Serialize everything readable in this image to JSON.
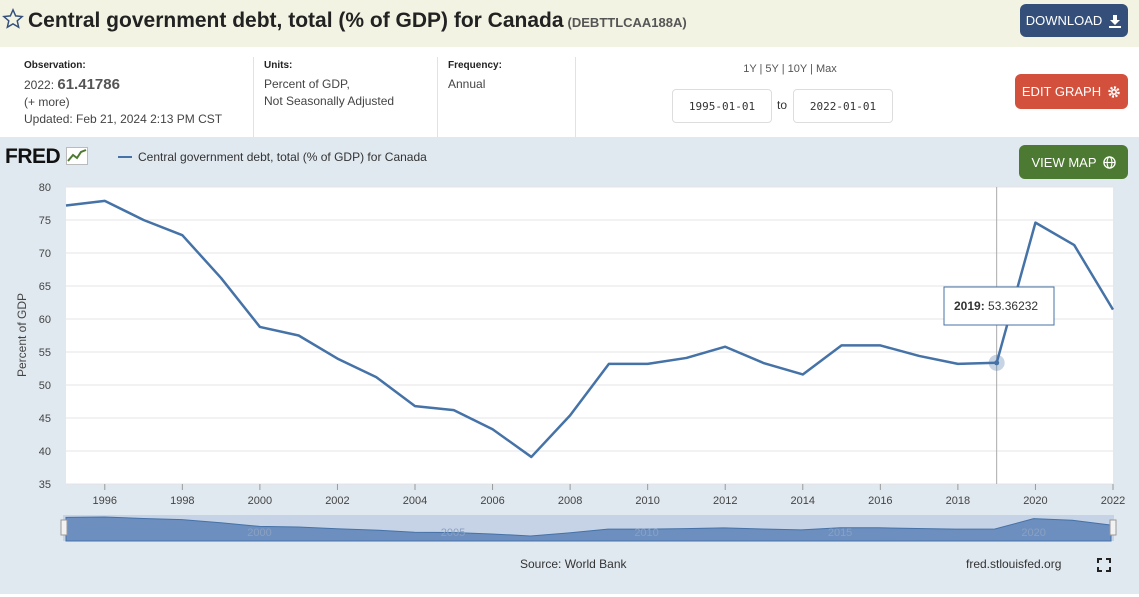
{
  "header": {
    "title": "Central government debt, total (% of GDP) for Canada",
    "series_id": "(DEBTTLCAA188A)",
    "download_label": "DOWNLOAD",
    "edit_graph_label": "EDIT GRAPH",
    "view_map_label": "VIEW MAP"
  },
  "meta": {
    "observation_label": "Observation:",
    "observation_date": "2022:",
    "observation_value": "61.41786",
    "more": "(+ more)",
    "updated_label": "Updated:",
    "updated_value": "Feb 21, 2024 2:13 PM CST",
    "units_label": "Units:",
    "units_line1": "Percent of GDP,",
    "units_line2": "Not Seasonally Adjusted",
    "frequency_label": "Frequency:",
    "frequency_value": "Annual"
  },
  "range": {
    "buttons": "1Y | 5Y | 10Y | Max",
    "start": "1995-01-01",
    "to": "to",
    "end": "2022-01-01"
  },
  "branding": {
    "logo": "FRED",
    "source": "Source: World Bank",
    "url": "fred.stlouisfed.org"
  },
  "colors": {
    "line": "#4572a7",
    "download": "#34507a",
    "edit": "#d3503c",
    "map": "#4d7a32",
    "panel": "#e1e9f0"
  },
  "icons": [
    "star-icon",
    "download-icon",
    "gear-icon",
    "globe-icon",
    "fred-chart-icon",
    "fullscreen-icon"
  ],
  "chart_data": {
    "type": "line",
    "ylabel": "Percent of GDP",
    "ylim": [
      35,
      80
    ],
    "yticks": [
      35,
      40,
      45,
      50,
      55,
      60,
      65,
      70,
      75,
      80
    ],
    "xlim": [
      1995,
      2022
    ],
    "xticks": [
      1996,
      1998,
      2000,
      2002,
      2004,
      2006,
      2008,
      2010,
      2012,
      2014,
      2016,
      2018,
      2020,
      2022
    ],
    "grid": true,
    "legend": "top-left",
    "series": [
      {
        "name": "Central government debt, total (% of GDP) for Canada",
        "x": [
          1995,
          1996,
          1997,
          1998,
          1999,
          2000,
          2001,
          2002,
          2003,
          2004,
          2005,
          2006,
          2007,
          2008,
          2009,
          2010,
          2011,
          2012,
          2013,
          2014,
          2015,
          2016,
          2017,
          2018,
          2019,
          2020,
          2021,
          2022
        ],
        "y": [
          77.2,
          77.9,
          75.0,
          72.7,
          66.2,
          58.8,
          57.5,
          54.0,
          51.2,
          46.8,
          46.2,
          43.3,
          39.1,
          45.4,
          53.2,
          53.2,
          54.1,
          55.8,
          53.3,
          51.6,
          56.0,
          56.0,
          54.4,
          53.2,
          53.36232,
          74.6,
          71.2,
          61.41786
        ]
      }
    ],
    "tooltip": {
      "label": "2019:",
      "value": "53.36232"
    },
    "navigator_labels": [
      "2000",
      "2005",
      "2010",
      "2015",
      "2020"
    ]
  }
}
